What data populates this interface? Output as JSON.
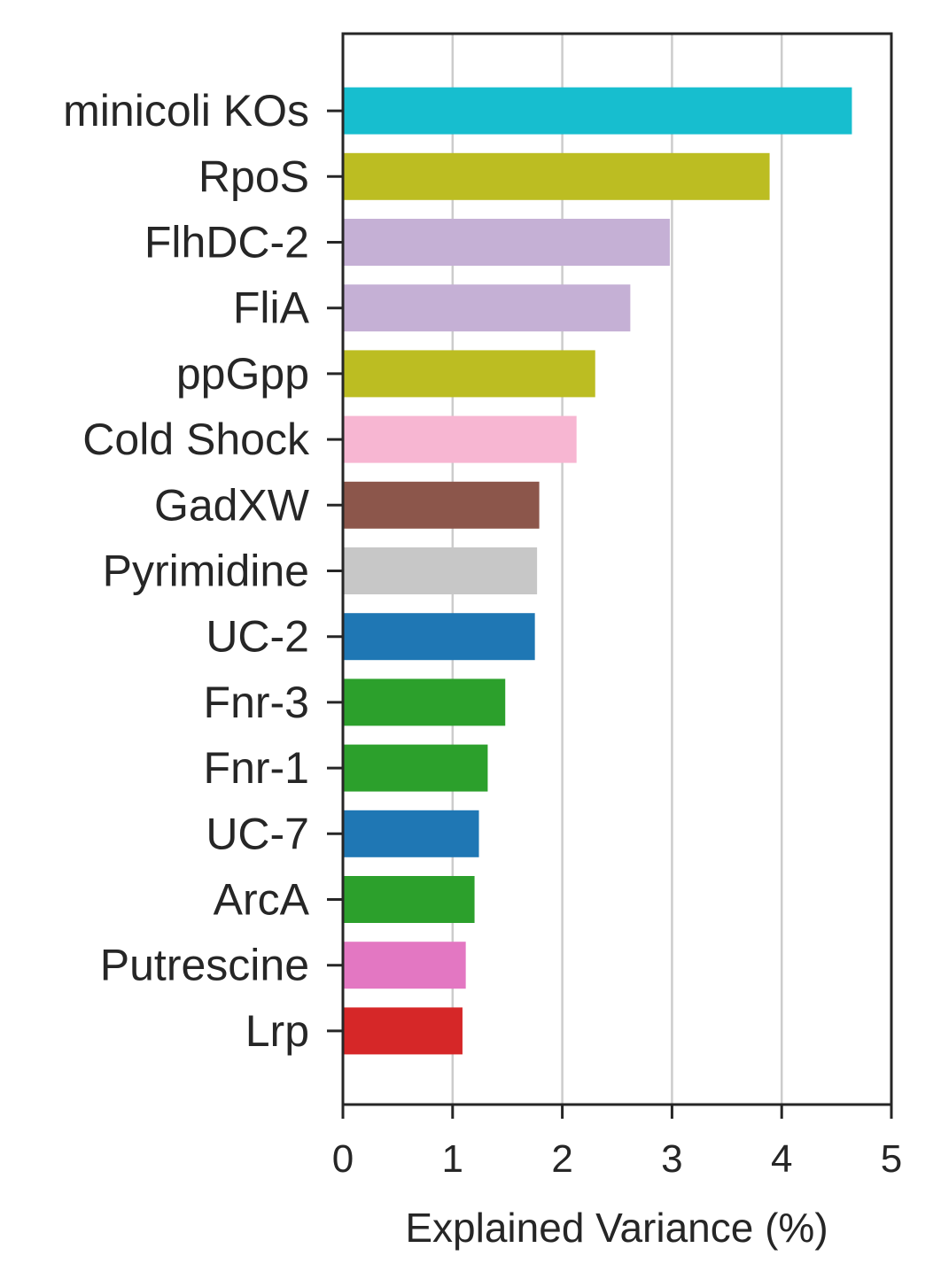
{
  "chart_data": {
    "type": "bar",
    "orientation": "horizontal",
    "xlabel": "Explained Variance (%)",
    "xlim": [
      0,
      5
    ],
    "xticks": [
      "0",
      "1",
      "2",
      "3",
      "4",
      "5"
    ],
    "grid": "vertical",
    "categories": [
      "minicoli KOs",
      "RpoS",
      "FlhDC-2",
      "FliA",
      "ppGpp",
      "Cold Shock",
      "GadXW",
      "Pyrimidine",
      "UC-2",
      "Fnr-3",
      "Fnr-1",
      "UC-7",
      "ArcA",
      "Putrescine",
      "Lrp"
    ],
    "values": [
      4.64,
      3.89,
      2.98,
      2.62,
      2.3,
      2.13,
      1.79,
      1.77,
      1.75,
      1.48,
      1.32,
      1.24,
      1.2,
      1.12,
      1.09
    ],
    "colors": [
      "#17becf",
      "#bcbd22",
      "#c5b0d5",
      "#c5b0d5",
      "#bcbd22",
      "#f7b6d2",
      "#8c564b",
      "#c7c7c7",
      "#1f77b4",
      "#2ca02c",
      "#2ca02c",
      "#1f77b4",
      "#2ca02c",
      "#e377c2",
      "#d62728"
    ],
    "axis_color": "#262626",
    "grid_color": "#cccccc"
  }
}
